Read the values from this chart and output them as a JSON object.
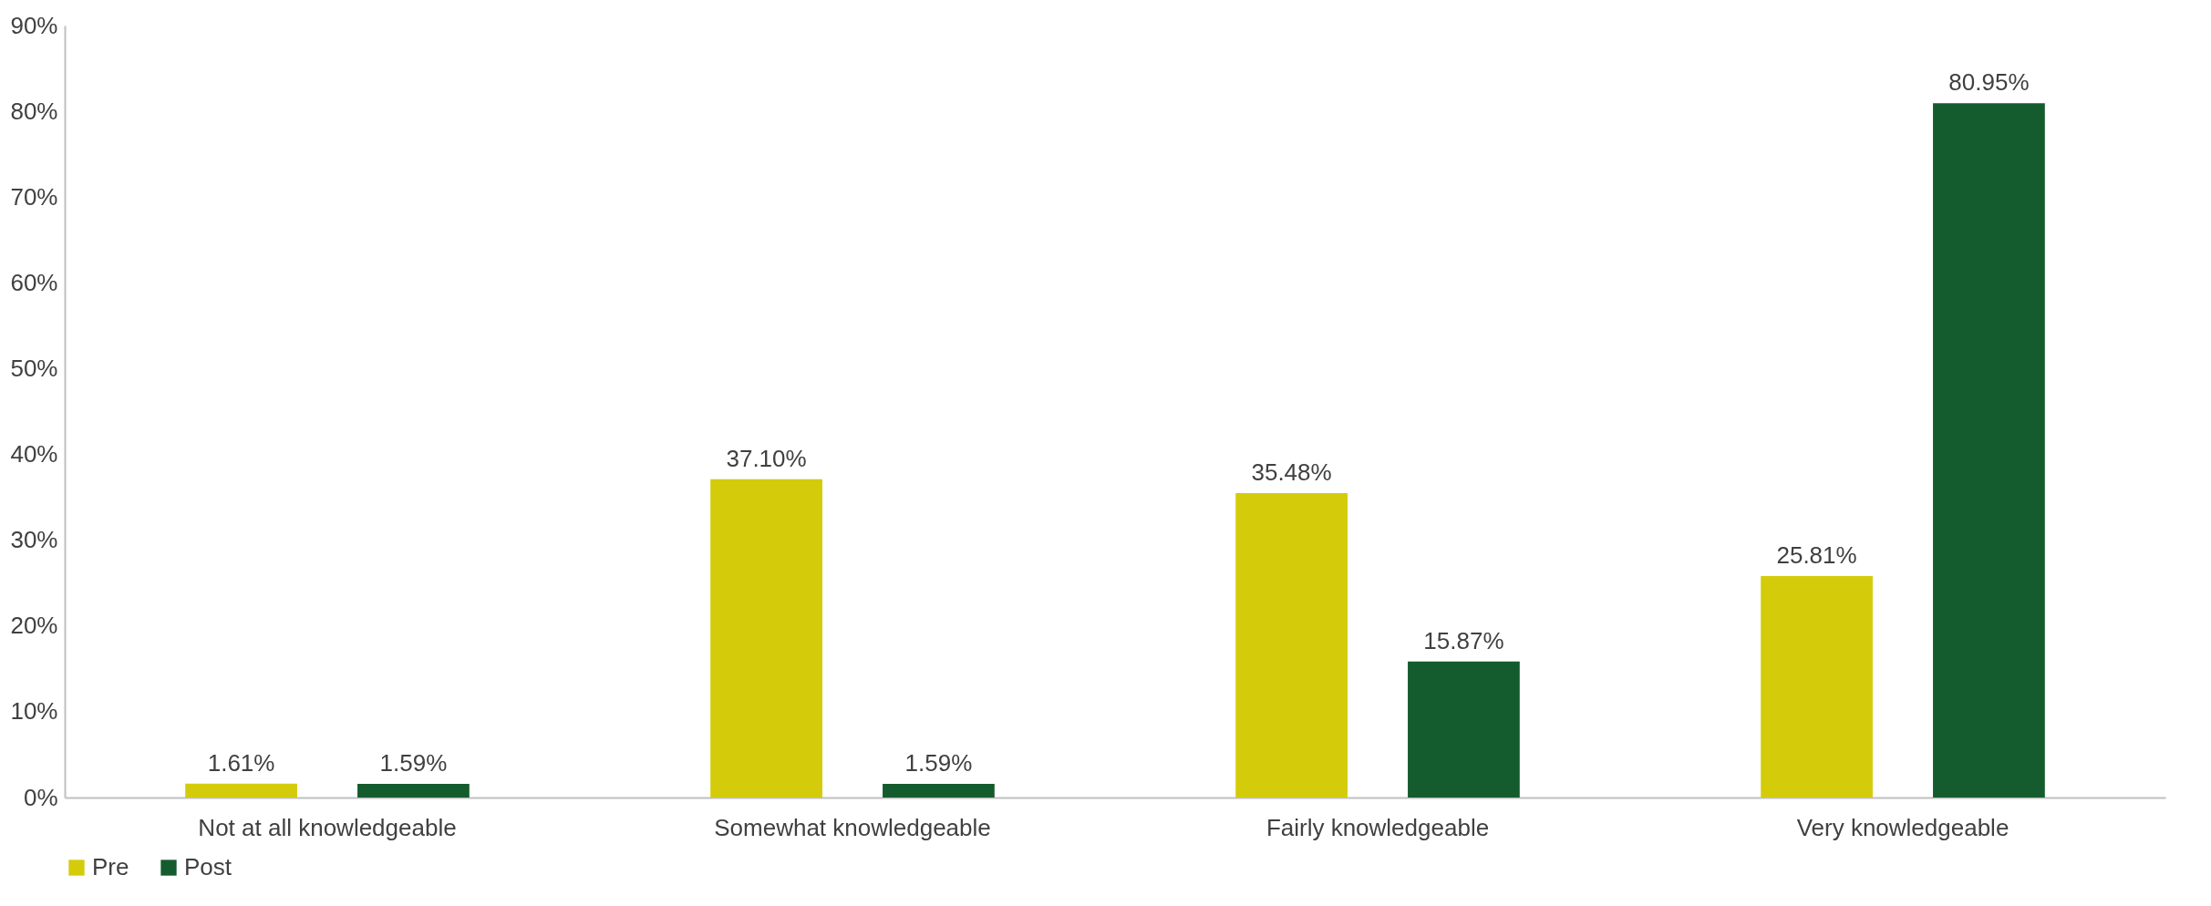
{
  "chart_data": {
    "type": "bar",
    "categories": [
      "Not at all knowledgeable",
      "Somewhat knowledgeable",
      "Fairly knowledgeable",
      "Very knowledgeable"
    ],
    "series": [
      {
        "name": "Pre",
        "color": "#d4cc0a",
        "values": [
          1.61,
          37.1,
          35.48,
          25.81
        ],
        "value_labels": [
          "1.61%",
          "37.10%",
          "35.48%",
          "25.81%"
        ]
      },
      {
        "name": "Post",
        "color": "#145c2e",
        "values": [
          1.59,
          1.59,
          15.87,
          80.95
        ],
        "value_labels": [
          "1.59%",
          "1.59%",
          "15.87%",
          "80.95%"
        ]
      }
    ],
    "ylim": [
      0,
      90
    ],
    "yticks": [
      {
        "value": 0,
        "label": "0%"
      },
      {
        "value": 10,
        "label": "10%"
      },
      {
        "value": 20,
        "label": "20%"
      },
      {
        "value": 30,
        "label": "30%"
      },
      {
        "value": 40,
        "label": "40%"
      },
      {
        "value": 50,
        "label": "50%"
      },
      {
        "value": 60,
        "label": "60%"
      },
      {
        "value": 70,
        "label": "70%"
      },
      {
        "value": 80,
        "label": "80%"
      },
      {
        "value": 90,
        "label": "90%"
      }
    ],
    "grid": false,
    "legend": "bottom"
  }
}
